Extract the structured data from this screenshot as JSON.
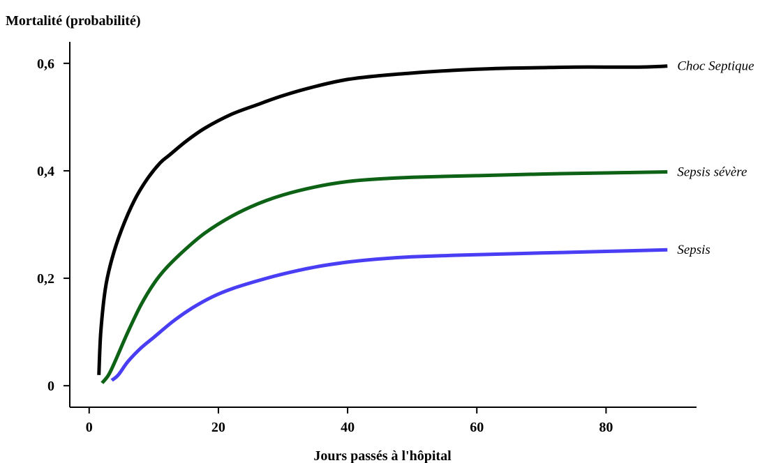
{
  "chart_data": {
    "type": "line",
    "title": "",
    "ylabel": "Mortalité (probabilité)",
    "xlabel": "Jours passés à l'hôpital",
    "xlim": [
      -3,
      94
    ],
    "ylim": [
      -0.04,
      0.64
    ],
    "x_ticks": [
      {
        "value": 0,
        "label": "0"
      },
      {
        "value": 20,
        "label": "20"
      },
      {
        "value": 40,
        "label": "40"
      },
      {
        "value": 60,
        "label": "60"
      },
      {
        "value": 80,
        "label": "80"
      }
    ],
    "y_ticks": [
      {
        "value": 0,
        "label": "0"
      },
      {
        "value": 0.2,
        "label": "0,2"
      },
      {
        "value": 0.4,
        "label": "0,4"
      },
      {
        "value": 0.6,
        "label": "0,6"
      }
    ],
    "grid": false,
    "series": [
      {
        "name": "Choc Septique",
        "color": "#000000",
        "x": [
          1.5,
          1.8,
          2.5,
          3.5,
          5,
          7,
          9,
          11,
          12.5,
          15,
          18,
          22,
          26,
          30,
          35,
          40,
          45,
          50,
          55,
          60,
          65,
          70,
          75,
          80,
          85,
          88,
          89.5
        ],
        "y": [
          0.02,
          0.1,
          0.18,
          0.235,
          0.29,
          0.345,
          0.385,
          0.415,
          0.43,
          0.455,
          0.48,
          0.505,
          0.523,
          0.54,
          0.557,
          0.57,
          0.577,
          0.582,
          0.586,
          0.589,
          0.591,
          0.592,
          0.593,
          0.593,
          0.593,
          0.594,
          0.595
        ]
      },
      {
        "name": "Sepsis sévère",
        "color": "#0e6216",
        "x": [
          2,
          3,
          4,
          6,
          8,
          10,
          12,
          15,
          18,
          22,
          26,
          30,
          35,
          40,
          45,
          50,
          60,
          70,
          80,
          89.5
        ],
        "y": [
          0.005,
          0.02,
          0.045,
          0.1,
          0.15,
          0.19,
          0.22,
          0.255,
          0.285,
          0.315,
          0.338,
          0.355,
          0.37,
          0.38,
          0.385,
          0.388,
          0.391,
          0.394,
          0.396,
          0.398
        ]
      },
      {
        "name": "Sepsis",
        "color": "#4a3ef5",
        "x": [
          3.5,
          4.5,
          6,
          8,
          10,
          13,
          16,
          19,
          22,
          26,
          30,
          35,
          40,
          45,
          50,
          60,
          70,
          80,
          89.5
        ],
        "y": [
          0.01,
          0.02,
          0.045,
          0.07,
          0.09,
          0.12,
          0.145,
          0.165,
          0.18,
          0.195,
          0.208,
          0.221,
          0.23,
          0.236,
          0.24,
          0.244,
          0.247,
          0.25,
          0.253
        ]
      }
    ]
  }
}
